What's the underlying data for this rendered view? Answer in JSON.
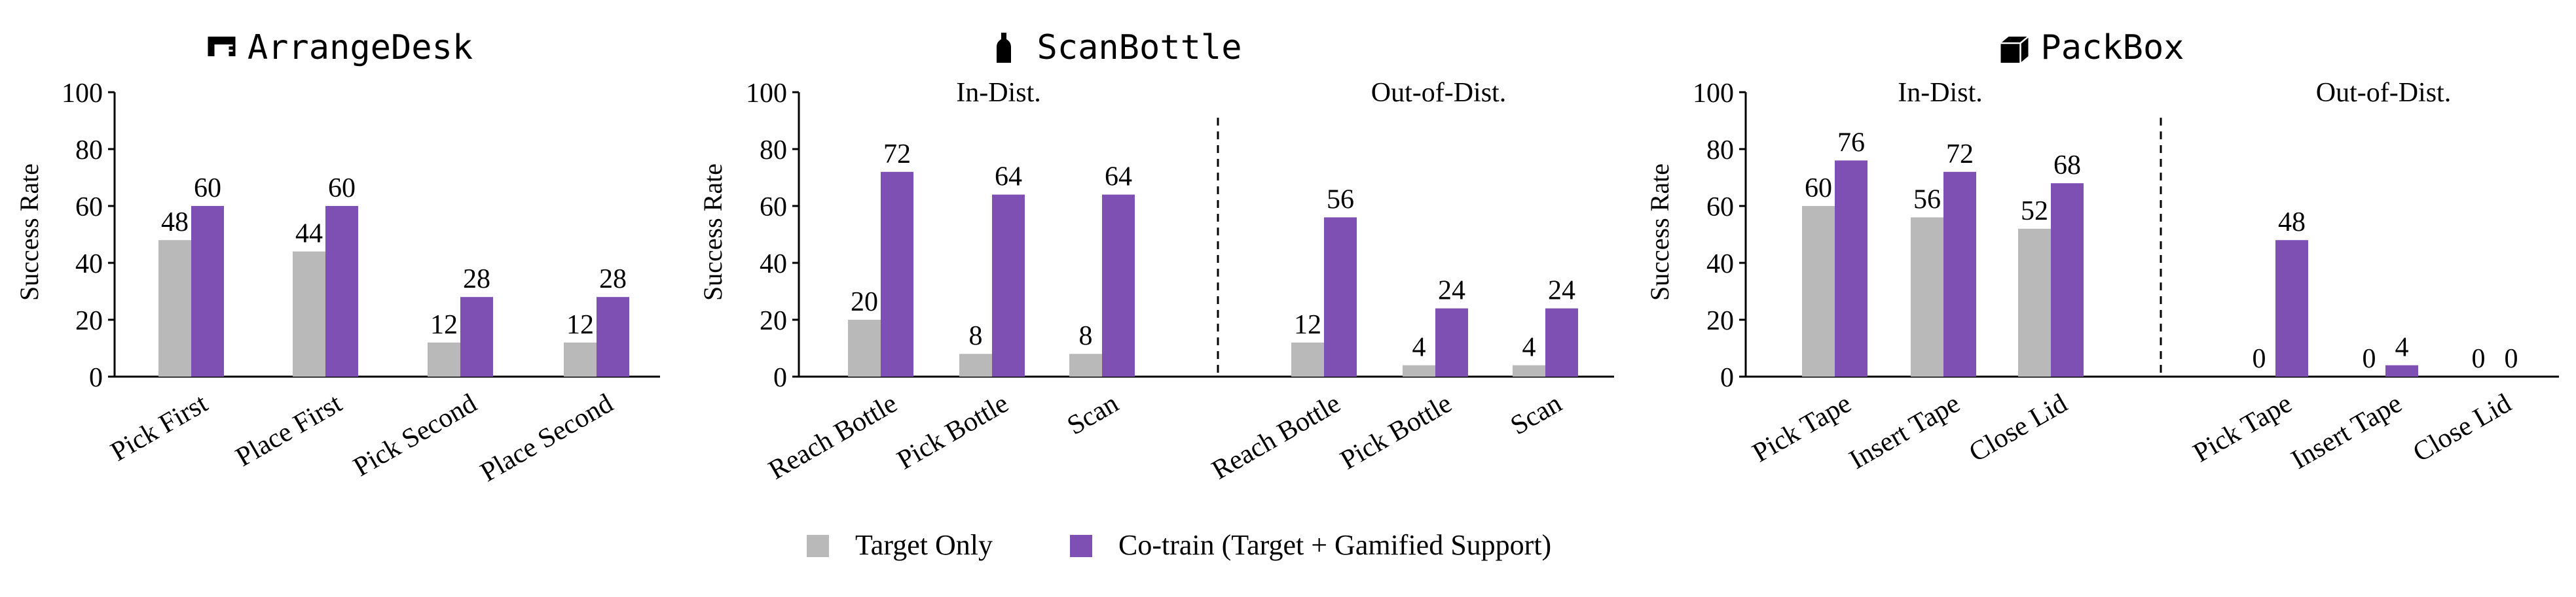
{
  "colors": {
    "target": "#b9b9b9",
    "cotrain": "#7e50b4",
    "axis": "#000000"
  },
  "legend": {
    "items": [
      {
        "label": "Target Only",
        "color": "#b9b9b9",
        "icon": "grey-square"
      },
      {
        "label": "Co-train (Target + Gamified Support)",
        "color": "#7e50b4",
        "icon": "purple-square"
      }
    ]
  },
  "chart_data": [
    {
      "type": "bar",
      "title": "ArrangeDesk",
      "title_icon": "desk-icon",
      "ylabel": "Success Rate",
      "ylim": [
        0,
        100
      ],
      "yticks": [
        0,
        20,
        40,
        60,
        80,
        100
      ],
      "grid": false,
      "groups": [
        {
          "label": "",
          "categories": [
            "Pick First",
            "Place First",
            "Pick Second",
            "Place Second"
          ]
        }
      ],
      "series": [
        {
          "name": "Target Only",
          "values": [
            48,
            44,
            12,
            12
          ]
        },
        {
          "name": "Co-train (Target + Gamified Support)",
          "values": [
            60,
            60,
            28,
            28
          ]
        }
      ]
    },
    {
      "type": "bar",
      "title": "ScanBottle",
      "title_icon": "bottle-icon",
      "ylabel": "Success Rate",
      "ylim": [
        0,
        100
      ],
      "yticks": [
        0,
        20,
        40,
        60,
        80,
        100
      ],
      "grid": false,
      "groups": [
        {
          "label": "In-Dist.",
          "categories": [
            "Reach Bottle",
            "Pick Bottle",
            "Scan"
          ]
        },
        {
          "label": "Out-of-Dist.",
          "categories": [
            "Reach Bottle",
            "Pick Bottle",
            "Scan"
          ]
        }
      ],
      "series": [
        {
          "name": "Target Only",
          "values": [
            20,
            8,
            8,
            12,
            4,
            4
          ]
        },
        {
          "name": "Co-train (Target + Gamified Support)",
          "values": [
            72,
            64,
            64,
            56,
            24,
            24
          ]
        }
      ]
    },
    {
      "type": "bar",
      "title": "PackBox",
      "title_icon": "box-icon",
      "ylabel": "Success Rate",
      "ylim": [
        0,
        100
      ],
      "yticks": [
        0,
        20,
        40,
        60,
        80,
        100
      ],
      "grid": false,
      "groups": [
        {
          "label": "In-Dist.",
          "categories": [
            "Pick Tape",
            "Insert Tape",
            "Close Lid"
          ]
        },
        {
          "label": "Out-of-Dist.",
          "categories": [
            "Pick Tape",
            "Insert Tape",
            "Close Lid"
          ]
        }
      ],
      "series": [
        {
          "name": "Target Only",
          "values": [
            60,
            56,
            52,
            0,
            0,
            0
          ]
        },
        {
          "name": "Co-train (Target + Gamified Support)",
          "values": [
            76,
            72,
            68,
            48,
            4,
            0
          ]
        }
      ]
    }
  ]
}
